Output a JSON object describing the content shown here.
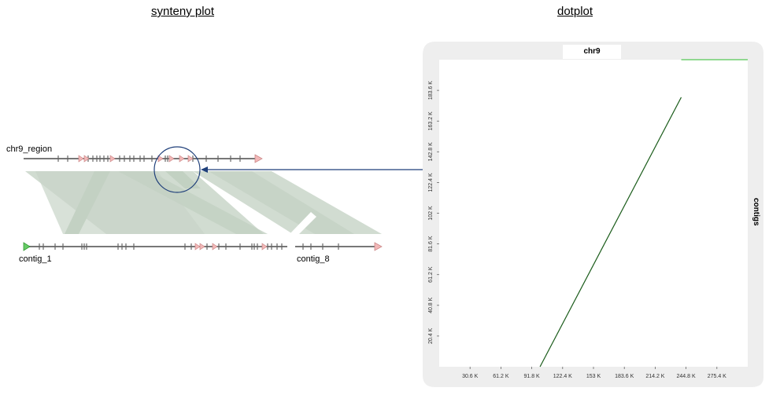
{
  "titles": {
    "synteny": "synteny plot",
    "dotplot": "dotplot"
  },
  "synteny": {
    "top_sequence": "chr9_region",
    "bottom_left_sequence": "contig_1",
    "bottom_right_sequence": "contig_8",
    "highlight_color": "#1f3f7a",
    "block_color": "#c9d6c9",
    "gene_color": "#f2b8b8",
    "start_marker_color": "#66cc66"
  },
  "dotplot": {
    "x_panel_label": "chr9",
    "y_panel_label": "contigs",
    "panel_color": "#eeeeee"
  },
  "chart_data": {
    "type": "line",
    "title": "",
    "xlabel": "",
    "ylabel": "",
    "x_ticks": [
      "30.6 K",
      "61.2 K",
      "91.8 K",
      "122.4 K",
      "153 K",
      "183.6 K",
      "214.2 K",
      "244.8 K",
      "275.4 K"
    ],
    "y_ticks": [
      "20.4 K",
      "40.8 K",
      "61.2 K",
      "81.6 K",
      "102 K",
      "122.4 K",
      "142.8 K",
      "163.2 K",
      "183.6 K"
    ],
    "x_tick_values": [
      30600,
      61200,
      91800,
      122400,
      153000,
      183600,
      214200,
      244800,
      275400
    ],
    "y_tick_values": [
      20400,
      40800,
      61200,
      81600,
      102000,
      122400,
      142800,
      163200,
      183600
    ],
    "xlim": [
      0,
      306000
    ],
    "ylim": [
      0,
      204000
    ],
    "series": [
      {
        "color": "#1a5c1a",
        "points": [
          [
            100000,
            0
          ],
          [
            240000,
            179000
          ]
        ]
      },
      {
        "color": "#55c855",
        "points": [
          [
            240000,
            214000
          ],
          [
            320000,
            308000
          ]
        ]
      }
    ]
  }
}
